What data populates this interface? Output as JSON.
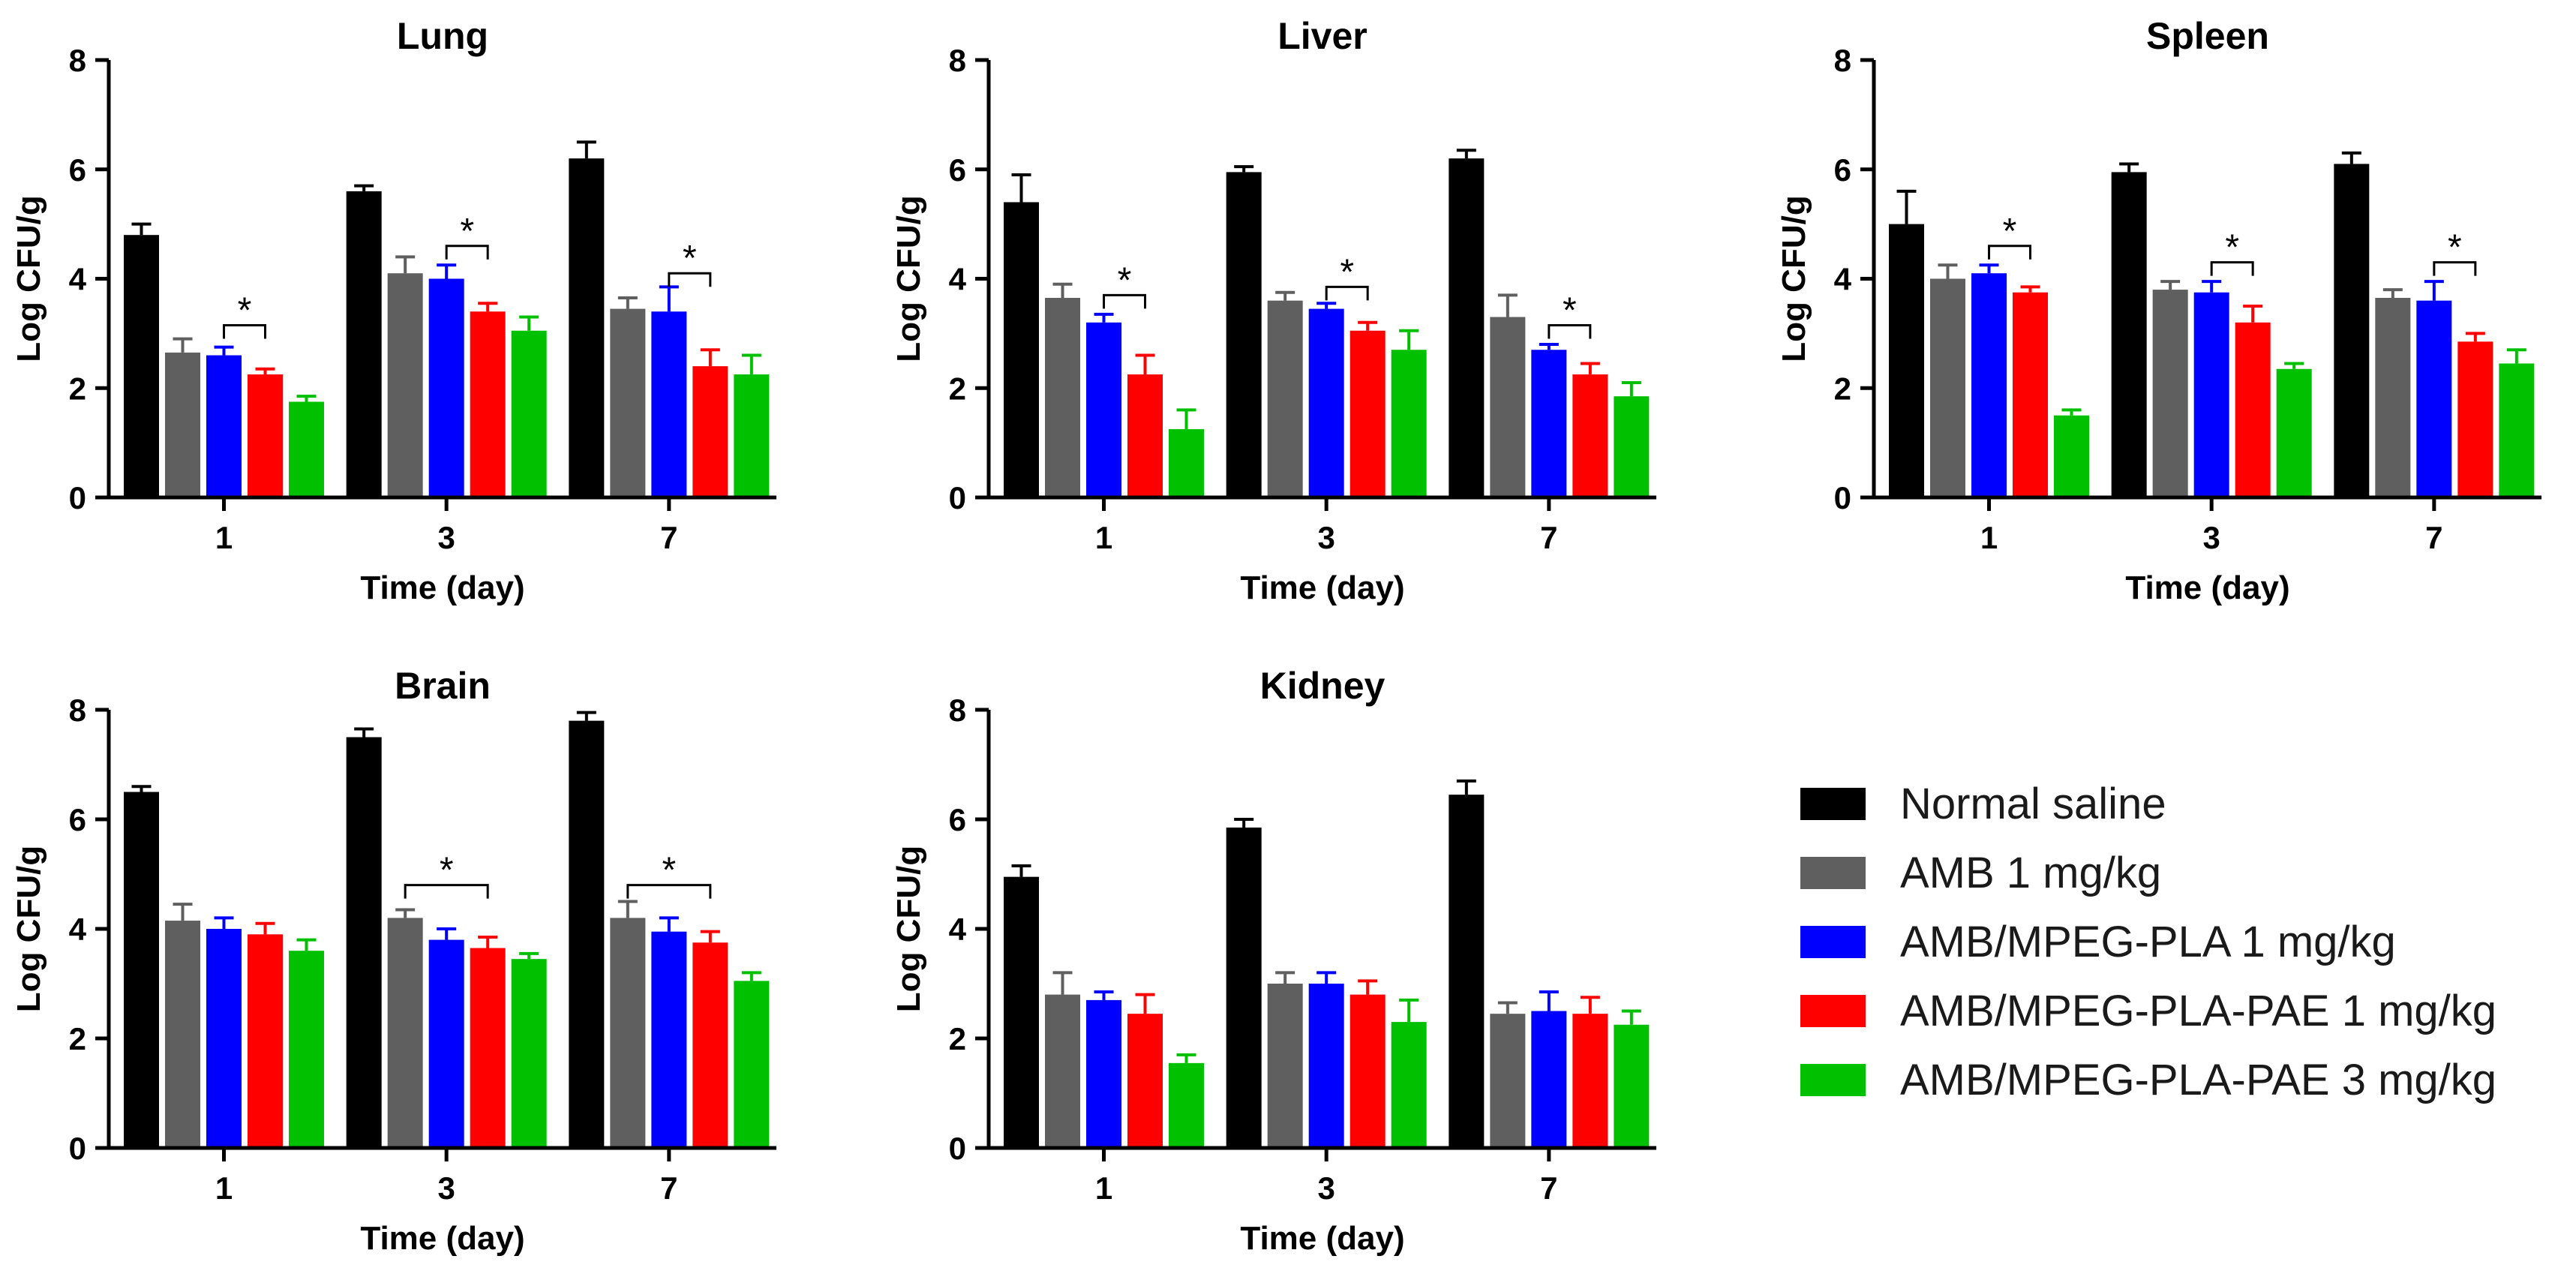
{
  "series_meta": [
    {
      "name": "Normal saline",
      "color": "#000000"
    },
    {
      "name": "AMB 1 mg/kg",
      "color": "#5f5f5f"
    },
    {
      "name": "AMB/MPEG-PLA 1 mg/kg",
      "color": "#0000ff"
    },
    {
      "name": "AMB/MPEG-PLA-PAE 1 mg/kg",
      "color": "#ff0000"
    },
    {
      "name": "AMB/MPEG-PLA-PAE 3 mg/kg",
      "color": "#00c000"
    }
  ],
  "chart_data": [
    {
      "type": "bar",
      "title": "Lung",
      "xlabel": "Time (day)",
      "ylabel": "Log CFU/g",
      "categories": [
        "1",
        "3",
        "7"
      ],
      "ylim": [
        0,
        8
      ],
      "yticks": [
        "0",
        "2",
        "4",
        "6",
        "8"
      ],
      "series": [
        {
          "name": "Normal saline",
          "values": [
            4.8,
            5.6,
            6.2
          ],
          "errors": [
            0.2,
            0.1,
            0.3
          ]
        },
        {
          "name": "AMB 1 mg/kg",
          "values": [
            2.65,
            4.1,
            3.45
          ],
          "errors": [
            0.25,
            0.3,
            0.2
          ]
        },
        {
          "name": "AMB/MPEG-PLA 1 mg/kg",
          "values": [
            2.6,
            4.0,
            3.4
          ],
          "errors": [
            0.15,
            0.25,
            0.45
          ]
        },
        {
          "name": "AMB/MPEG-PLA-PAE 1 mg/kg",
          "values": [
            2.25,
            3.4,
            2.4
          ],
          "errors": [
            0.1,
            0.15,
            0.3
          ]
        },
        {
          "name": "AMB/MPEG-PLA-PAE 3 mg/kg",
          "values": [
            1.75,
            3.05,
            2.25
          ],
          "errors": [
            0.1,
            0.25,
            0.35
          ]
        }
      ],
      "significance": [
        {
          "category": 0,
          "from": 2,
          "to": 3,
          "y": 3.15,
          "label": "*"
        },
        {
          "category": 1,
          "from": 2,
          "to": 3,
          "y": 4.6,
          "label": "*"
        },
        {
          "category": 2,
          "from": 2,
          "to": 3,
          "y": 4.1,
          "label": "*"
        }
      ]
    },
    {
      "type": "bar",
      "title": "Liver",
      "xlabel": "Time (day)",
      "ylabel": "Log CFU/g",
      "categories": [
        "1",
        "3",
        "7"
      ],
      "ylim": [
        0,
        8
      ],
      "yticks": [
        "0",
        "2",
        "4",
        "6",
        "8"
      ],
      "series": [
        {
          "name": "Normal saline",
          "values": [
            5.4,
            5.95,
            6.2
          ],
          "errors": [
            0.5,
            0.1,
            0.15
          ]
        },
        {
          "name": "AMB 1 mg/kg",
          "values": [
            3.65,
            3.6,
            3.3
          ],
          "errors": [
            0.25,
            0.15,
            0.4
          ]
        },
        {
          "name": "AMB/MPEG-PLA 1 mg/kg",
          "values": [
            3.2,
            3.45,
            2.7
          ],
          "errors": [
            0.15,
            0.1,
            0.1
          ]
        },
        {
          "name": "AMB/MPEG-PLA-PAE 1 mg/kg",
          "values": [
            2.25,
            3.05,
            2.25
          ],
          "errors": [
            0.35,
            0.15,
            0.2
          ]
        },
        {
          "name": "AMB/MPEG-PLA-PAE 3 mg/kg",
          "values": [
            1.25,
            2.7,
            1.85
          ],
          "errors": [
            0.35,
            0.35,
            0.25
          ]
        }
      ],
      "significance": [
        {
          "category": 0,
          "from": 2,
          "to": 3,
          "y": 3.7,
          "label": "*"
        },
        {
          "category": 1,
          "from": 2,
          "to": 3,
          "y": 3.85,
          "label": "*"
        },
        {
          "category": 2,
          "from": 2,
          "to": 3,
          "y": 3.15,
          "label": "*"
        }
      ]
    },
    {
      "type": "bar",
      "title": "Spleen",
      "xlabel": "Time (day)",
      "ylabel": "Log CFU/g",
      "categories": [
        "1",
        "3",
        "7"
      ],
      "ylim": [
        0,
        8
      ],
      "yticks": [
        "0",
        "2",
        "4",
        "6",
        "8"
      ],
      "series": [
        {
          "name": "Normal saline",
          "values": [
            5.0,
            5.95,
            6.1
          ],
          "errors": [
            0.6,
            0.15,
            0.2
          ]
        },
        {
          "name": "AMB 1 mg/kg",
          "values": [
            4.0,
            3.8,
            3.65
          ],
          "errors": [
            0.25,
            0.15,
            0.15
          ]
        },
        {
          "name": "AMB/MPEG-PLA 1 mg/kg",
          "values": [
            4.1,
            3.75,
            3.6
          ],
          "errors": [
            0.15,
            0.2,
            0.35
          ]
        },
        {
          "name": "AMB/MPEG-PLA-PAE 1 mg/kg",
          "values": [
            3.75,
            3.2,
            2.85
          ],
          "errors": [
            0.1,
            0.3,
            0.15
          ]
        },
        {
          "name": "AMB/MPEG-PLA-PAE 3 mg/kg",
          "values": [
            1.5,
            2.35,
            2.45
          ],
          "errors": [
            0.1,
            0.1,
            0.25
          ]
        }
      ],
      "significance": [
        {
          "category": 0,
          "from": 2,
          "to": 3,
          "y": 4.6,
          "label": "*"
        },
        {
          "category": 1,
          "from": 2,
          "to": 3,
          "y": 4.3,
          "label": "*"
        },
        {
          "category": 2,
          "from": 2,
          "to": 3,
          "y": 4.3,
          "label": "*"
        }
      ]
    },
    {
      "type": "bar",
      "title": "Brain",
      "xlabel": "Time (day)",
      "ylabel": "Log CFU/g",
      "categories": [
        "1",
        "3",
        "7"
      ],
      "ylim": [
        0,
        8
      ],
      "yticks": [
        "0",
        "2",
        "4",
        "6",
        "8"
      ],
      "series": [
        {
          "name": "Normal saline",
          "values": [
            6.5,
            7.5,
            7.8
          ],
          "errors": [
            0.1,
            0.15,
            0.15
          ]
        },
        {
          "name": "AMB 1 mg/kg",
          "values": [
            4.15,
            4.2,
            4.2
          ],
          "errors": [
            0.3,
            0.15,
            0.3
          ]
        },
        {
          "name": "AMB/MPEG-PLA 1 mg/kg",
          "values": [
            4.0,
            3.8,
            3.95
          ],
          "errors": [
            0.2,
            0.2,
            0.25
          ]
        },
        {
          "name": "AMB/MPEG-PLA-PAE 1 mg/kg",
          "values": [
            3.9,
            3.65,
            3.75
          ],
          "errors": [
            0.2,
            0.2,
            0.2
          ]
        },
        {
          "name": "AMB/MPEG-PLA-PAE 3 mg/kg",
          "values": [
            3.6,
            3.45,
            3.05
          ],
          "errors": [
            0.2,
            0.1,
            0.15
          ]
        }
      ],
      "significance": [
        {
          "category": 1,
          "from": 1,
          "to": 3,
          "y": 4.8,
          "label": "*"
        },
        {
          "category": 2,
          "from": 1,
          "to": 3,
          "y": 4.8,
          "label": "*"
        }
      ]
    },
    {
      "type": "bar",
      "title": "Kidney",
      "xlabel": "Time (day)",
      "ylabel": "Log CFU/g",
      "categories": [
        "1",
        "3",
        "7"
      ],
      "ylim": [
        0,
        8
      ],
      "yticks": [
        "0",
        "2",
        "4",
        "6",
        "8"
      ],
      "series": [
        {
          "name": "Normal saline",
          "values": [
            4.95,
            5.85,
            6.45
          ],
          "errors": [
            0.2,
            0.15,
            0.25
          ]
        },
        {
          "name": "AMB 1 mg/kg",
          "values": [
            2.8,
            3.0,
            2.45
          ],
          "errors": [
            0.4,
            0.2,
            0.2
          ]
        },
        {
          "name": "AMB/MPEG-PLA 1 mg/kg",
          "values": [
            2.7,
            3.0,
            2.5
          ],
          "errors": [
            0.15,
            0.2,
            0.35
          ]
        },
        {
          "name": "AMB/MPEG-PLA-PAE 1 mg/kg",
          "values": [
            2.45,
            2.8,
            2.45
          ],
          "errors": [
            0.35,
            0.25,
            0.3
          ]
        },
        {
          "name": "AMB/MPEG-PLA-PAE 3 mg/kg",
          "values": [
            1.55,
            2.3,
            2.25
          ],
          "errors": [
            0.15,
            0.4,
            0.25
          ]
        }
      ],
      "significance": []
    }
  ]
}
